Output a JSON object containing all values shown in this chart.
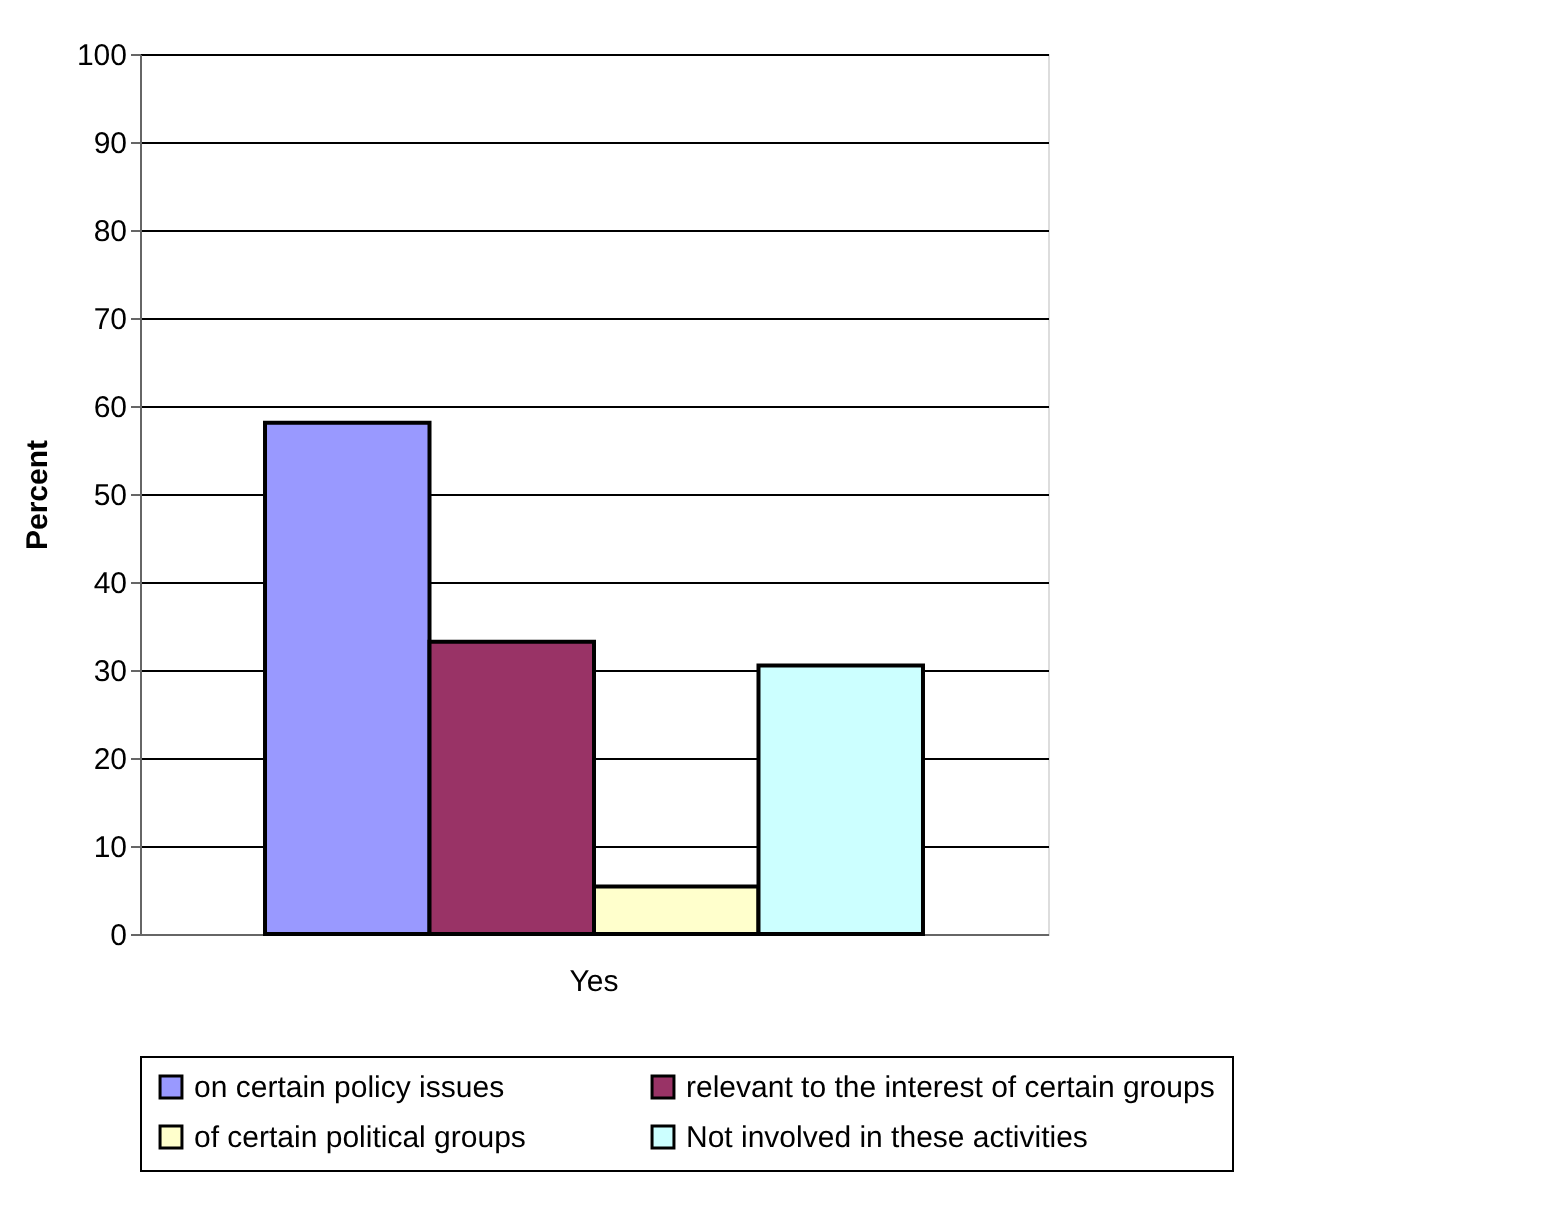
{
  "chart_data": {
    "type": "bar",
    "ylabel": "Percent",
    "categories": [
      "Yes"
    ],
    "series": [
      {
        "name": "on certain policy issues",
        "color": "#9999ff",
        "values": [
          58.1
        ]
      },
      {
        "name": "relevant to the interest of certain groups",
        "color": "#993366",
        "values": [
          33.2
        ]
      },
      {
        "name": "of certain political groups",
        "color": "#ffffcc",
        "values": [
          5.4
        ]
      },
      {
        "name": "Not involved in these activities",
        "color": "#ccffff",
        "values": [
          30.5
        ]
      }
    ],
    "ylim": [
      0,
      100
    ],
    "yticks": [
      0,
      10,
      20,
      30,
      40,
      50,
      60,
      70,
      80,
      90,
      100
    ],
    "grid": "y",
    "legend": "bottom"
  }
}
